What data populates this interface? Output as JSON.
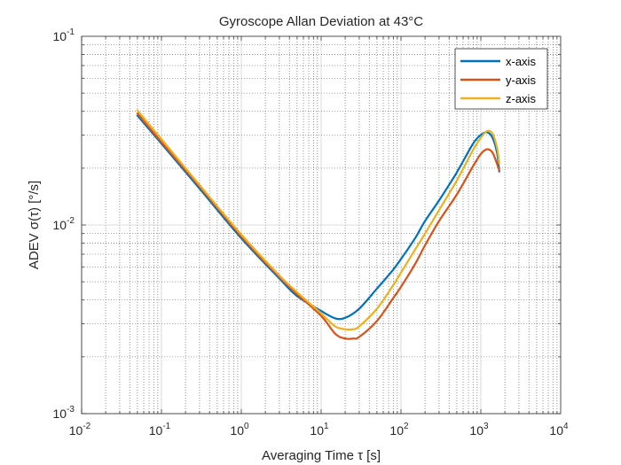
{
  "chart_data": {
    "type": "line",
    "title": "Gyroscope Allan Deviation at 43°C",
    "xlabel": "Averaging Time τ [s]",
    "ylabel": "ADEV σ(τ) [°/s]",
    "xscale": "log",
    "yscale": "log",
    "xlim": [
      0.01,
      10000
    ],
    "ylim": [
      0.001,
      0.1
    ],
    "x_ticks": [
      {
        "base": "10",
        "exp": "-2",
        "value": 0.01
      },
      {
        "base": "10",
        "exp": "-1",
        "value": 0.1
      },
      {
        "base": "10",
        "exp": "0",
        "value": 1
      },
      {
        "base": "10",
        "exp": "1",
        "value": 10
      },
      {
        "base": "10",
        "exp": "2",
        "value": 100
      },
      {
        "base": "10",
        "exp": "3",
        "value": 1000
      },
      {
        "base": "10",
        "exp": "4",
        "value": 10000
      }
    ],
    "y_ticks": [
      {
        "base": "10",
        "exp": "-3",
        "value": 0.001
      },
      {
        "base": "10",
        "exp": "-2",
        "value": 0.01
      },
      {
        "base": "10",
        "exp": "-1",
        "value": 0.1
      }
    ],
    "grid": true,
    "minor_grid": true,
    "legend_position": "top-right",
    "series": [
      {
        "name": "x-axis",
        "color": "#0072BD",
        "x": [
          0.05,
          0.1,
          0.3,
          1,
          3,
          5,
          10,
          15,
          20,
          30,
          50,
          80,
          100,
          150,
          200,
          300,
          500,
          800,
          1000,
          1200,
          1400,
          1600,
          1700
        ],
        "y": [
          0.038,
          0.027,
          0.0156,
          0.0085,
          0.0052,
          0.0042,
          0.0035,
          0.0032,
          0.00322,
          0.0036,
          0.0046,
          0.0058,
          0.0066,
          0.0085,
          0.0105,
          0.0135,
          0.019,
          0.027,
          0.03,
          0.031,
          0.029,
          0.024,
          0.0192
        ]
      },
      {
        "name": "y-axis",
        "color": "#D95319",
        "x": [
          0.05,
          0.1,
          0.3,
          1,
          3,
          5,
          10,
          15,
          20,
          25,
          30,
          50,
          80,
          100,
          150,
          200,
          300,
          500,
          800,
          1000,
          1200,
          1400,
          1600,
          1700
        ],
        "y": [
          0.039,
          0.0275,
          0.016,
          0.0087,
          0.0053,
          0.0043,
          0.0033,
          0.00265,
          0.0025,
          0.0025,
          0.00255,
          0.0031,
          0.0041,
          0.0047,
          0.0062,
          0.0078,
          0.0105,
          0.0145,
          0.0205,
          0.0238,
          0.0252,
          0.0242,
          0.021,
          0.0195
        ]
      },
      {
        "name": "z-axis",
        "color": "#EDB120",
        "x": [
          0.05,
          0.1,
          0.3,
          1,
          3,
          5,
          10,
          15,
          20,
          25,
          30,
          50,
          80,
          100,
          150,
          200,
          300,
          500,
          800,
          1000,
          1200,
          1400,
          1600,
          1700
        ],
        "y": [
          0.0405,
          0.0285,
          0.0163,
          0.0089,
          0.0054,
          0.0044,
          0.0034,
          0.0029,
          0.0028,
          0.0028,
          0.0029,
          0.0036,
          0.0048,
          0.0056,
          0.0074,
          0.009,
          0.012,
          0.0172,
          0.025,
          0.029,
          0.0315,
          0.0305,
          0.0255,
          0.0212
        ]
      }
    ]
  }
}
